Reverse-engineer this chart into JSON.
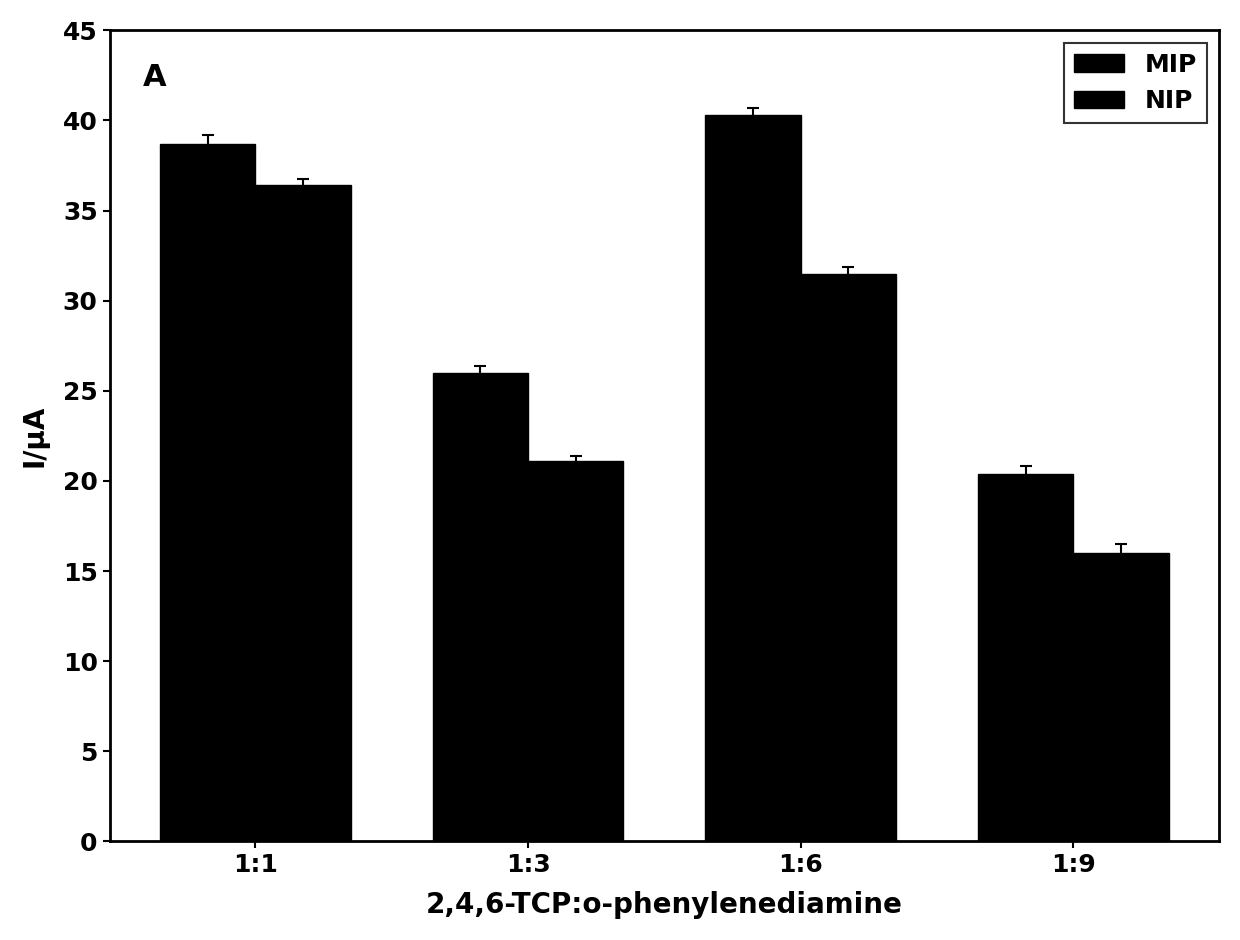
{
  "categories": [
    "1:1",
    "1:3",
    "1:6",
    "1:9"
  ],
  "mip_values": [
    38.7,
    26.0,
    40.3,
    20.4
  ],
  "nip_values": [
    36.4,
    21.1,
    31.5,
    16.0
  ],
  "mip_errors": [
    0.5,
    0.4,
    0.4,
    0.45
  ],
  "nip_errors": [
    0.35,
    0.3,
    0.35,
    0.5
  ],
  "bar_color": "#000000",
  "bar_width": 0.35,
  "ylim": [
    0,
    45
  ],
  "yticks": [
    0,
    5,
    10,
    15,
    20,
    25,
    30,
    35,
    40,
    45
  ],
  "ylabel": "I/μA",
  "xlabel": "2,4,6-TCP:o-phenylenediamine",
  "label_A": "A",
  "legend_labels": [
    "MIP",
    "NIP"
  ],
  "background_color": "#ffffff",
  "title_fontsize": 22,
  "axis_fontsize": 20,
  "tick_fontsize": 18,
  "legend_fontsize": 18
}
